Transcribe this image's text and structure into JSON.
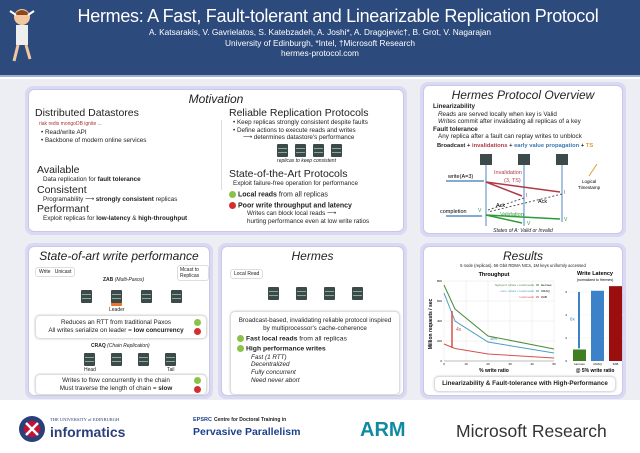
{
  "header": {
    "title": "Hermes: A Fast, Fault-tolerant and Linearizable Replication Protocol",
    "authors": "A. Katsarakis, V. Gavrielatos, S. Katebzadeh, A. Joshi*, A. Dragojevic†, B. Grot, V. Nagarajan",
    "affiliations": "University of Edinburgh, *Intel, †Microsoft Research",
    "url": "hermes-protocol.com"
  },
  "motivation": {
    "title": "Motivation",
    "datastores": {
      "heading": "Distributed Datastores",
      "logos": "riak  redis  mongoDB  ignite  ...",
      "bullets": [
        "• Read/write API",
        "• Backbone of modern online services"
      ]
    },
    "available": {
      "heading": "Available",
      "text": "Data replication for ",
      "bold": "fault tolerance"
    },
    "consistent": {
      "heading": "Consistent",
      "text": "Programability ⟶ ",
      "bold": "strongly consistent",
      "after": " replicas"
    },
    "performant": {
      "heading": "Performant",
      "text": "Exploit replicas for ",
      "bold": "low-latency",
      "mid": " & ",
      "bold2": "high-throughput"
    },
    "rrp": {
      "heading": "Reliable Replication Protocols",
      "bullets": [
        "• Keep replicas strongly consistent despite faults",
        "• Define actions to execute reads and writes"
      ],
      "arrow": "⟶ determines datastore's performance",
      "caption": "replicas to keep consistent"
    },
    "sota": {
      "heading": "State-of-the-Art Protocols",
      "text": "Exploit failure-free operation for performance",
      "good_bold": "Local reads",
      "good_rest": " from all replicas",
      "bad_bold": "Poor write throughput and latency",
      "bad_l1": "Writes can block local reads ⟶",
      "bad_l2": "hurting performance even at low write ratios"
    }
  },
  "overview": {
    "title": "Hermes Protocol Overview",
    "lin": "Linearizability",
    "reads_i": "Reads",
    "reads": " are served locally when key is Valid",
    "writes_i": "Writes",
    "writes": " commit after invalidating all replicas of a key",
    "ft": "Fault tolerance",
    "ft_text": "Any replica after a fault can replay writes to unblock",
    "legend": {
      "broadcast": "Broadcast",
      "inv": "invalidations",
      "evp": "early value propagation",
      "ts": "TS",
      "plus": "+"
    },
    "diagram": {
      "write": "write(A=3)",
      "invalidation": "Invalidation",
      "inv_args": "(3, TS)",
      "ack": "Ack",
      "completion": "completion",
      "validation": "Validation",
      "i": "I",
      "v": "V",
      "logical": "Logical",
      "timestamp": "Timestamp",
      "states": "States of A: Valid or Invalid"
    },
    "colors": {
      "inv": "#b03a48",
      "evp": "#3a78b5",
      "ts": "#e39a3a",
      "val": "#2e9a3a"
    }
  },
  "sota_write": {
    "title": "State-of-art write performance",
    "legend_write": "Write",
    "legend_unicast": "Unicast",
    "legend_mcast": "Mcast to Replicas",
    "zab": "ZAB",
    "zab_i": "(Multi-Paxos)",
    "leader": "Leader",
    "zab_good": "Reduces an RTT from traditional Paxos",
    "zab_bad": "All writes serialize on leader = ",
    "zab_bad_b": "low concurrency",
    "craq": "CRAQ",
    "craq_i": "(Chain Replication)",
    "head": "Head",
    "tail": "Tail",
    "craq_good": "Writes to flow concurrently in the chain",
    "craq_bad": "Must traverse the length of chain = ",
    "craq_bad_b": "slow"
  },
  "hermes": {
    "title": "Hermes",
    "local_read": "Local Read",
    "desc": "Broadcast-based, invalidating reliable protocol inspired by multiprocessor's cache-coherence",
    "fast_b": "Fast local reads",
    "fast_r": " from all replicas",
    "hp": "High performance writes",
    "features": [
      "Fast (1 RTT)",
      "Decentralized",
      "Fully concurrent",
      "Need never abort"
    ]
  },
  "results": {
    "title": "Results",
    "setup": "5 node (replicas), 56 Gbit RDMA NICs, 1M keys uniformly accessed",
    "tagline": "Linearizability & Fault-tolerance with High-Performance",
    "ann_4x": "4x",
    "ann_40": "40%",
    "ann_6x": "6x"
  },
  "chart_data": [
    {
      "type": "line",
      "title": "Throughput",
      "xlabel": "% write ratio",
      "ylabel": "Million requests / sec",
      "xlim": [
        0,
        50
      ],
      "ylim": [
        0,
        800
      ],
      "xticks": [
        0,
        10,
        20,
        30,
        40,
        50
      ],
      "yticks": [
        0,
        200,
        400,
        600,
        800
      ],
      "grid": true,
      "legend": "top-right",
      "x": [
        0,
        5,
        20,
        50
      ],
      "series": [
        {
          "name": "Hermes",
          "label": "high-perf. writes + local reads",
          "color": "#4f8a3a",
          "values": [
            760,
            520,
            250,
            120
          ]
        },
        {
          "name": "CRAQ",
          "label": "conc. writes + local reads",
          "color": "#4a9ec2",
          "values": [
            680,
            400,
            190,
            80
          ]
        },
        {
          "name": "ZAB",
          "label": "local reads",
          "color": "#d4534a",
          "values": [
            170,
            125,
            70,
            30
          ]
        }
      ]
    },
    {
      "type": "bar",
      "title": "Write Latency",
      "subtitle": "(normalized to Hermes)",
      "xlabel": "@ 5% write ratio",
      "categories": [
        "Hermes",
        "CRAQ",
        "ZAB"
      ],
      "values": [
        1,
        6.1,
        6.5
      ],
      "colors": [
        "#3f7f22",
        "#3b82c8",
        "#9b0e0e"
      ],
      "ylim": [
        0,
        6.6
      ],
      "yticks": [
        0,
        2,
        4,
        6
      ]
    }
  ],
  "footer": {
    "uoe_small": "THE UNIVERSITY of EDINBURGH",
    "uoe": "informatics",
    "epsrc": "EPSRC",
    "cdt": "Centre for Doctoral Training in",
    "pp": "Pervasive Parallelism",
    "arm": "ARM",
    "msr": "Microsoft Research"
  }
}
